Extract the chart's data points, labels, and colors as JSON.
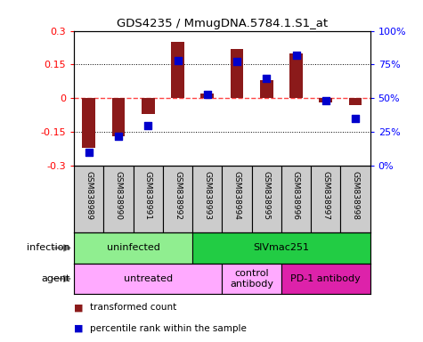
{
  "title": "GDS4235 / MmugDNA.5784.1.S1_at",
  "samples": [
    "GSM838989",
    "GSM838990",
    "GSM838991",
    "GSM838992",
    "GSM838993",
    "GSM838994",
    "GSM838995",
    "GSM838996",
    "GSM838997",
    "GSM838998"
  ],
  "transformed_count": [
    -0.22,
    -0.17,
    -0.07,
    0.25,
    0.02,
    0.22,
    0.08,
    0.2,
    -0.02,
    -0.03
  ],
  "percentile_rank": [
    10,
    22,
    30,
    78,
    53,
    77,
    65,
    82,
    48,
    35
  ],
  "ylim": [
    -0.3,
    0.3
  ],
  "yticks": [
    -0.3,
    -0.15,
    0,
    0.15,
    0.3
  ],
  "ytick_labels_left": [
    "-0.3",
    "-0.15",
    "0",
    "0.15",
    "0.3"
  ],
  "ytick_labels_right": [
    "0%",
    "25%",
    "50%",
    "75%",
    "100%"
  ],
  "bar_color": "#8B1A1A",
  "dot_color": "#0000CC",
  "zero_line_color": "#FF4444",
  "infection_labels": [
    {
      "text": "uninfected",
      "start": 0,
      "end": 4,
      "color": "#90EE90"
    },
    {
      "text": "SIVmac251",
      "start": 4,
      "end": 10,
      "color": "#22CC44"
    }
  ],
  "agent_labels": [
    {
      "text": "untreated",
      "start": 0,
      "end": 5,
      "color": "#FFAAFF"
    },
    {
      "text": "control\nantibody",
      "start": 5,
      "end": 7,
      "color": "#FFAAFF"
    },
    {
      "text": "PD-1 antibody",
      "start": 7,
      "end": 10,
      "color": "#DD22AA"
    }
  ],
  "infection_row_label": "infection",
  "agent_row_label": "agent",
  "legend_items": [
    {
      "color": "#8B1A1A",
      "label": "transformed count"
    },
    {
      "color": "#0000CC",
      "label": "percentile rank within the sample"
    }
  ],
  "bar_width": 0.45,
  "dot_size": 30
}
